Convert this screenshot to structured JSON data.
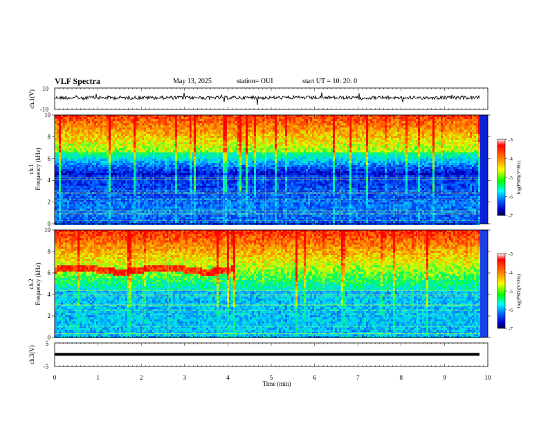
{
  "header": {
    "title": "VLF Spectra",
    "date": "May 13, 2025",
    "station": "station= OUI",
    "start": "start  UT  =   10: 20: 0"
  },
  "colorbar": {
    "label": "log(PSD)(V²/Hz)",
    "ticks": [
      "-3",
      "-4",
      "-5",
      "-6",
      "-7"
    ],
    "colors": [
      "#ff0000",
      "#ff9900",
      "#ffff00",
      "#00ff00",
      "#00ffff",
      "#0066ff",
      "#0000cc",
      "#000060"
    ]
  },
  "chart_data": [
    {
      "type": "line",
      "title": "VLF Spectra",
      "ylabel": "ch.1(V)",
      "ylim": [
        -10,
        10
      ],
      "yticks": [
        "10",
        "-10"
      ],
      "description_series": [
        {
          "values": [
            0
          ]
        }
      ],
      "xlim": [
        0,
        10
      ]
    },
    {
      "type": "heatmap",
      "ylabel": "ch.1\nFrequency (kHz)",
      "ylabel_line1": "ch.1",
      "ylabel_line2": "Frequency (kHz)",
      "ylim": [
        0,
        10
      ],
      "yticks": [
        "10",
        "8",
        "6",
        "4",
        "2",
        "0"
      ],
      "xlim": [
        0,
        10
      ],
      "color_scale": [
        -7,
        -3
      ]
    },
    {
      "type": "heatmap",
      "ylabel_line1": "ch.2",
      "ylabel_line2": "Frequency (kHz)",
      "ylim": [
        0,
        10
      ],
      "yticks": [
        "10",
        "8",
        "6",
        "4",
        "2",
        "0"
      ],
      "xlim": [
        0,
        10
      ],
      "color_scale": [
        -7,
        -3
      ]
    },
    {
      "type": "line",
      "ylabel": "ch.3(V)",
      "ylim": [
        -5,
        5
      ],
      "yticks": [
        "5",
        "-5"
      ],
      "xlim": [
        0,
        10
      ],
      "xlabel": "Time  (min)",
      "xticks": [
        "0",
        "1",
        "2",
        "3",
        "4",
        "5",
        "6",
        "7",
        "8",
        "9",
        "10"
      ]
    }
  ]
}
